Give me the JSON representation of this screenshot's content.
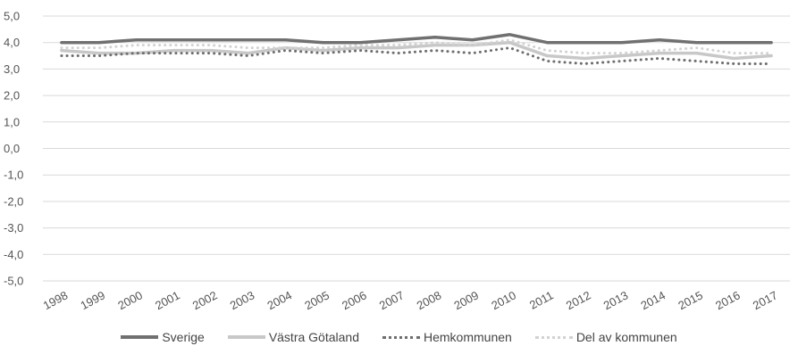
{
  "chart_data": {
    "type": "line",
    "title": "",
    "xlabel": "",
    "ylabel": "",
    "ylim": [
      -5.0,
      5.0
    ],
    "y_ticks": [
      "5,0",
      "4,0",
      "3,0",
      "2,0",
      "1,0",
      "0,0",
      "-1,0",
      "-2,0",
      "-3,0",
      "-4,0",
      "-5,0"
    ],
    "y_tick_values": [
      5,
      4,
      3,
      2,
      1,
      0,
      -1,
      -2,
      -3,
      -4,
      -5
    ],
    "categories": [
      "1998",
      "1999",
      "2000",
      "2001",
      "2002",
      "2003",
      "2004",
      "2005",
      "2006",
      "2007",
      "2008",
      "2009",
      "2010",
      "2011",
      "2012",
      "2013",
      "2014",
      "2015",
      "2016",
      "2017"
    ],
    "grid": true,
    "legend_position": "bottom",
    "series": [
      {
        "name": "Sverige",
        "color": "#707070",
        "style": "solid",
        "values": [
          4.0,
          4.0,
          4.1,
          4.1,
          4.1,
          4.1,
          4.1,
          4.0,
          4.0,
          4.1,
          4.2,
          4.1,
          4.3,
          4.0,
          4.0,
          4.0,
          4.1,
          4.0,
          4.0,
          4.0
        ]
      },
      {
        "name": "Västra Götaland",
        "color": "#c8c8c8",
        "style": "solid",
        "values": [
          3.7,
          3.6,
          3.6,
          3.7,
          3.7,
          3.6,
          3.8,
          3.7,
          3.8,
          3.8,
          3.9,
          3.9,
          4.0,
          3.5,
          3.4,
          3.5,
          3.6,
          3.6,
          3.4,
          3.5
        ]
      },
      {
        "name": "Hemkommunen",
        "color": "#6e6e6e",
        "style": "dotted",
        "values": [
          3.5,
          3.5,
          3.6,
          3.6,
          3.6,
          3.5,
          3.7,
          3.6,
          3.7,
          3.6,
          3.7,
          3.6,
          3.8,
          3.3,
          3.2,
          3.3,
          3.4,
          3.3,
          3.2,
          3.2
        ]
      },
      {
        "name": "Del av kommunen",
        "color": "#d2d2d2",
        "style": "dotted",
        "values": [
          3.8,
          3.8,
          3.9,
          3.9,
          3.9,
          3.8,
          3.8,
          3.8,
          3.9,
          3.9,
          4.0,
          3.9,
          4.1,
          3.7,
          3.6,
          3.6,
          3.7,
          3.8,
          3.6,
          3.6
        ]
      }
    ]
  }
}
